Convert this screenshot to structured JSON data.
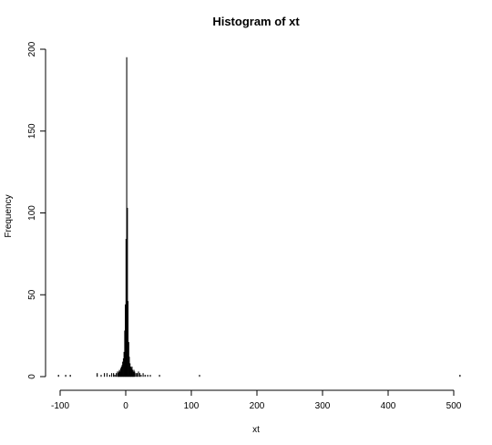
{
  "chart_data": {
    "type": "bar",
    "title": "Histogram of xt",
    "xlabel": "xt",
    "ylabel": "Frequency",
    "xlim": [
      -100,
      510
    ],
    "ylim": [
      0,
      200
    ],
    "x_ticks": [
      -100,
      0,
      100,
      200,
      300,
      400,
      500
    ],
    "y_ticks": [
      0,
      50,
      100,
      150,
      200
    ],
    "bin_width": 1,
    "bins": [
      {
        "x": -103,
        "count": 1
      },
      {
        "x": -92,
        "count": 1
      },
      {
        "x": -85,
        "count": 1
      },
      {
        "x": -44,
        "count": 2
      },
      {
        "x": -38,
        "count": 1
      },
      {
        "x": -33,
        "count": 2
      },
      {
        "x": -29,
        "count": 2
      },
      {
        "x": -25,
        "count": 1
      },
      {
        "x": -22,
        "count": 2
      },
      {
        "x": -19,
        "count": 2
      },
      {
        "x": -17,
        "count": 1
      },
      {
        "x": -15,
        "count": 2
      },
      {
        "x": -13,
        "count": 3
      },
      {
        "x": -12,
        "count": 2
      },
      {
        "x": -11,
        "count": 3
      },
      {
        "x": -10,
        "count": 4
      },
      {
        "x": -9,
        "count": 3
      },
      {
        "x": -8,
        "count": 5
      },
      {
        "x": -7,
        "count": 6
      },
      {
        "x": -6,
        "count": 7
      },
      {
        "x": -5,
        "count": 9
      },
      {
        "x": -4,
        "count": 11
      },
      {
        "x": -3,
        "count": 15
      },
      {
        "x": -2,
        "count": 28
      },
      {
        "x": -1,
        "count": 44
      },
      {
        "x": 0,
        "count": 84
      },
      {
        "x": 1,
        "count": 195
      },
      {
        "x": 2,
        "count": 103
      },
      {
        "x": 3,
        "count": 46
      },
      {
        "x": 4,
        "count": 21
      },
      {
        "x": 5,
        "count": 12
      },
      {
        "x": 6,
        "count": 8
      },
      {
        "x": 7,
        "count": 6
      },
      {
        "x": 8,
        "count": 5
      },
      {
        "x": 9,
        "count": 6
      },
      {
        "x": 10,
        "count": 4
      },
      {
        "x": 11,
        "count": 3
      },
      {
        "x": 12,
        "count": 4
      },
      {
        "x": 13,
        "count": 3
      },
      {
        "x": 15,
        "count": 2
      },
      {
        "x": 17,
        "count": 2
      },
      {
        "x": 19,
        "count": 3
      },
      {
        "x": 21,
        "count": 2
      },
      {
        "x": 23,
        "count": 1
      },
      {
        "x": 26,
        "count": 2
      },
      {
        "x": 29,
        "count": 1
      },
      {
        "x": 33,
        "count": 1
      },
      {
        "x": 37,
        "count": 1
      },
      {
        "x": 51,
        "count": 1
      },
      {
        "x": 112,
        "count": 1
      },
      {
        "x": 509,
        "count": 1
      }
    ]
  }
}
